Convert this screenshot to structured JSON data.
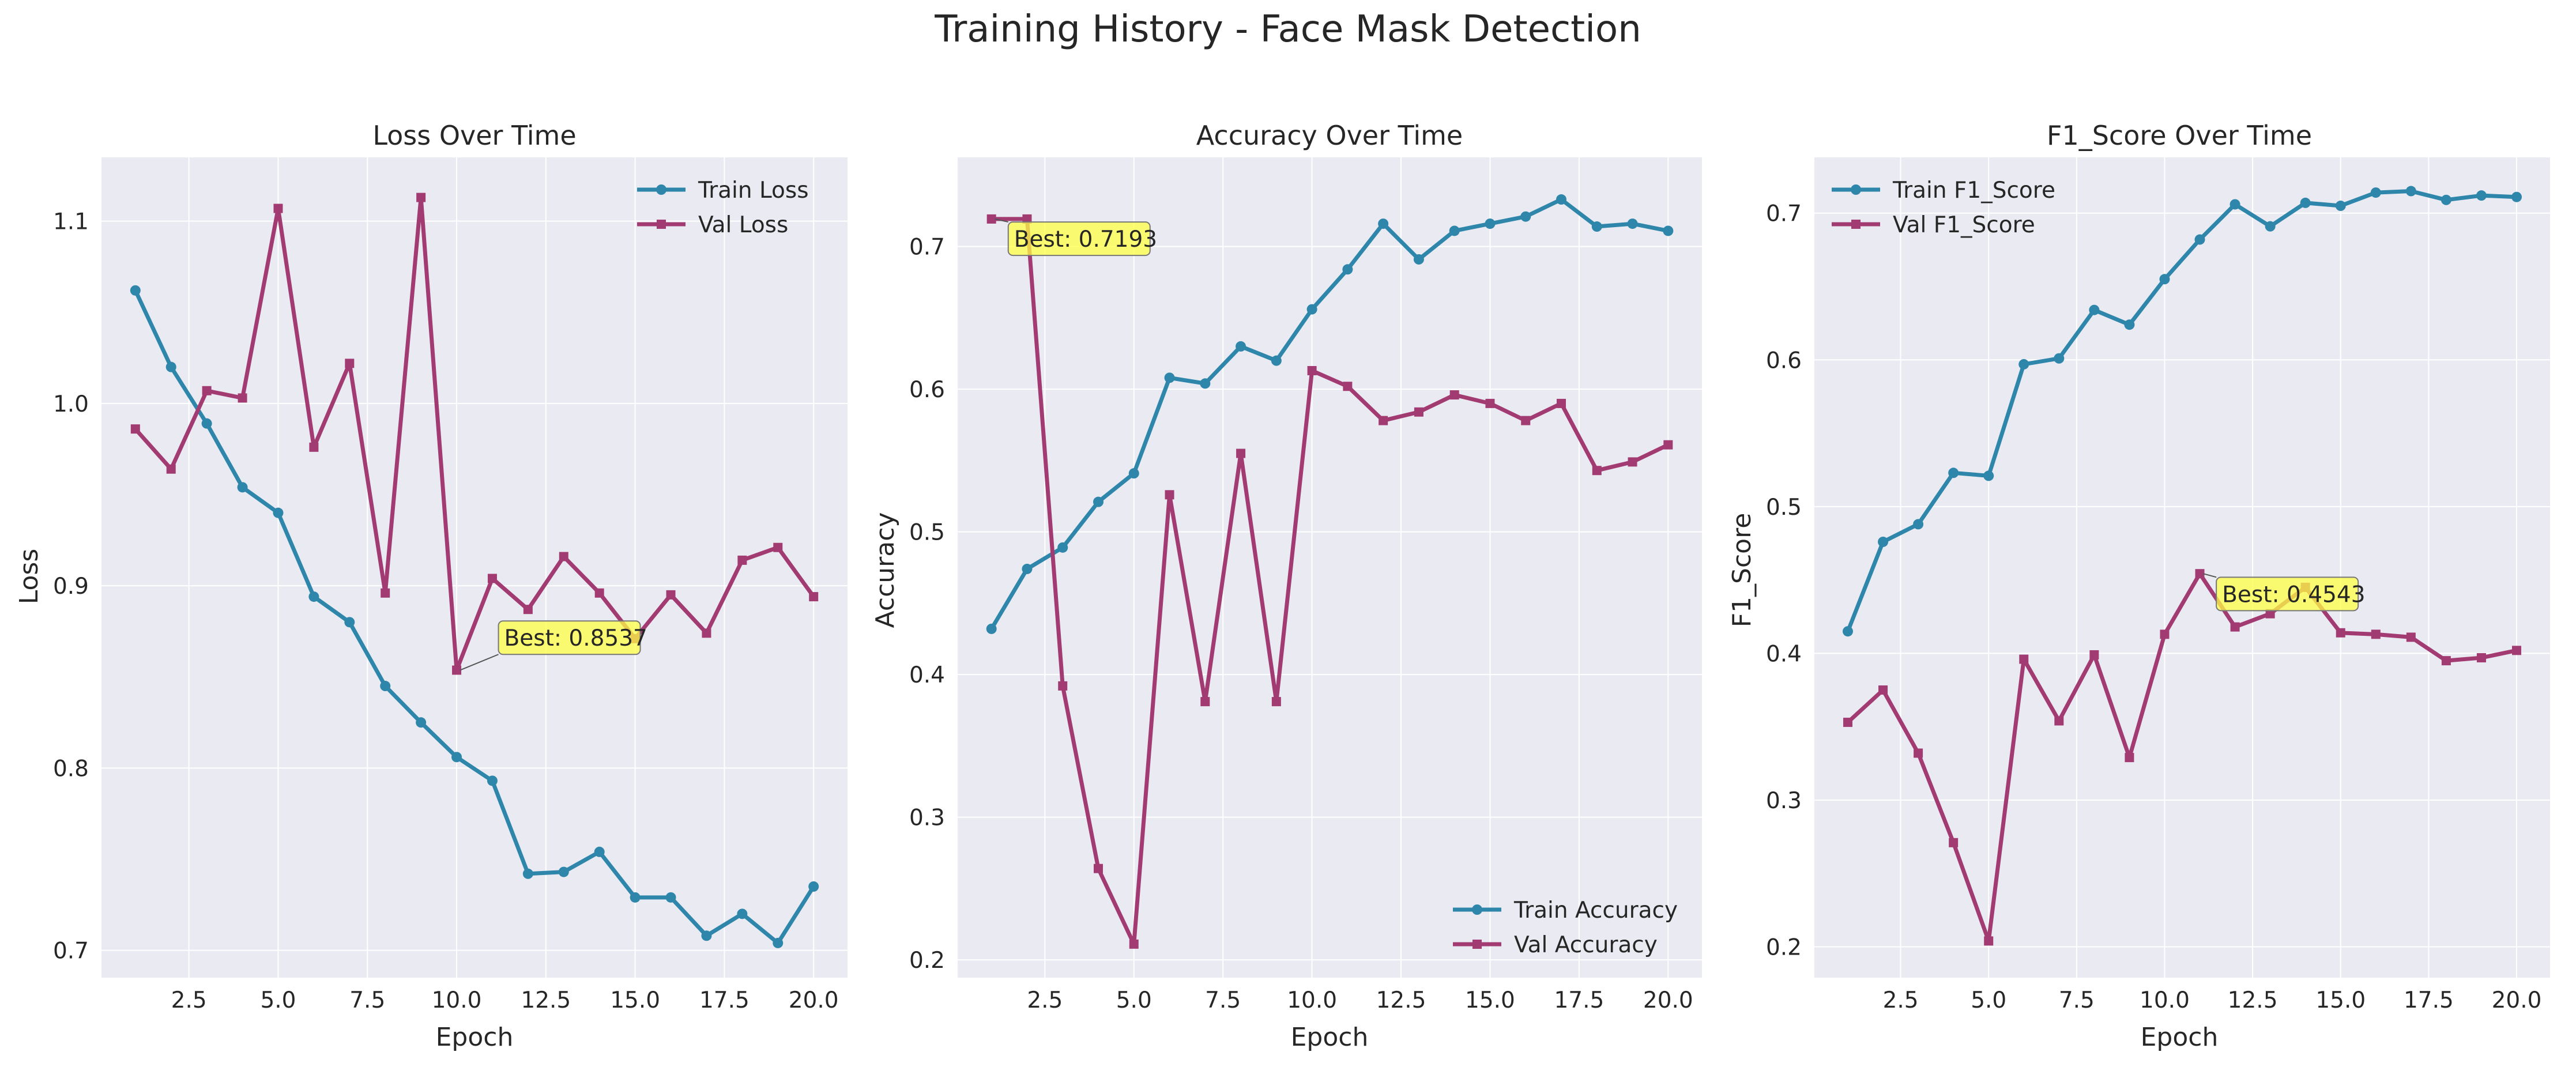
{
  "figure": {
    "title": "Training History - Face Mask Detection"
  },
  "colors": {
    "train": "#2e86ab",
    "val": "#a23b72",
    "panel_bg": "#eaeaf2",
    "grid": "#ffffff",
    "annotation_bg": "#ffff44"
  },
  "chart_data": [
    {
      "type": "line",
      "title": "Loss Over Time",
      "xlabel": "Epoch",
      "ylabel": "Loss",
      "xlim": [
        0.05,
        20.95
      ],
      "ylim": [
        0.685,
        1.135
      ],
      "xticks": [
        2.5,
        5.0,
        7.5,
        10.0,
        12.5,
        15.0,
        17.5,
        20.0
      ],
      "xtick_labels": [
        "2.5",
        "5.0",
        "7.5",
        "10.0",
        "12.5",
        "15.0",
        "17.5",
        "20.0"
      ],
      "yticks": [
        0.7,
        0.8,
        0.9,
        1.0,
        1.1
      ],
      "ytick_labels": [
        "0.7",
        "0.8",
        "0.9",
        "1.0",
        "1.1"
      ],
      "grid": true,
      "legend": "upper right",
      "x": [
        1,
        2,
        3,
        4,
        5,
        6,
        7,
        8,
        9,
        10,
        11,
        12,
        13,
        14,
        15,
        16,
        17,
        18,
        19,
        20
      ],
      "series": [
        {
          "name": "Train Loss",
          "color": "#2e86ab",
          "marker": "circle",
          "values": [
            1.062,
            1.02,
            0.989,
            0.954,
            0.94,
            0.894,
            0.88,
            0.845,
            0.825,
            0.806,
            0.793,
            0.742,
            0.743,
            0.754,
            0.729,
            0.729,
            0.708,
            0.72,
            0.704,
            0.735
          ]
        },
        {
          "name": "Val Loss",
          "color": "#a23b72",
          "marker": "square",
          "values": [
            0.986,
            0.964,
            1.007,
            1.003,
            1.107,
            0.976,
            1.022,
            0.896,
            1.113,
            0.8537,
            0.904,
            0.887,
            0.916,
            0.896,
            0.871,
            0.895,
            0.874,
            0.914,
            0.921,
            0.894
          ]
        }
      ],
      "annotation": {
        "text": "Best: 0.8537",
        "x": 10,
        "y": 0.8537,
        "text_x": 11.3,
        "text_y": 0.8715
      }
    },
    {
      "type": "line",
      "title": "Accuracy Over Time",
      "xlabel": "Epoch",
      "ylabel": "Accuracy",
      "xlim": [
        0.05,
        20.95
      ],
      "ylim": [
        0.1875,
        0.7625
      ],
      "xticks": [
        2.5,
        5.0,
        7.5,
        10.0,
        12.5,
        15.0,
        17.5,
        20.0
      ],
      "xtick_labels": [
        "2.5",
        "5.0",
        "7.5",
        "10.0",
        "12.5",
        "15.0",
        "17.5",
        "20.0"
      ],
      "yticks": [
        0.2,
        0.3,
        0.4,
        0.5,
        0.6,
        0.7
      ],
      "ytick_labels": [
        "0.2",
        "0.3",
        "0.4",
        "0.5",
        "0.6",
        "0.7"
      ],
      "grid": true,
      "legend": "lower right",
      "x": [
        1,
        2,
        3,
        4,
        5,
        6,
        7,
        8,
        9,
        10,
        11,
        12,
        13,
        14,
        15,
        16,
        17,
        18,
        19,
        20
      ],
      "series": [
        {
          "name": "Train Accuracy",
          "color": "#2e86ab",
          "marker": "circle",
          "values": [
            0.432,
            0.474,
            0.489,
            0.521,
            0.541,
            0.608,
            0.604,
            0.63,
            0.62,
            0.656,
            0.684,
            0.716,
            0.691,
            0.711,
            0.716,
            0.721,
            0.733,
            0.714,
            0.716,
            0.711
          ]
        },
        {
          "name": "Val Accuracy",
          "color": "#a23b72",
          "marker": "square",
          "values": [
            0.7193,
            0.7193,
            0.392,
            0.264,
            0.211,
            0.526,
            0.381,
            0.555,
            0.381,
            0.613,
            0.602,
            0.578,
            0.584,
            0.596,
            0.59,
            0.578,
            0.59,
            0.543,
            0.549,
            0.561
          ]
        }
      ],
      "annotation": {
        "text": "Best: 0.7193",
        "x": 1,
        "y": 0.7193,
        "text_x": 1.6,
        "text_y": 0.7055
      }
    },
    {
      "type": "line",
      "title": "F1_Score Over Time",
      "xlabel": "Epoch",
      "ylabel": "F1_Score",
      "xlim": [
        0.05,
        20.95
      ],
      "ylim": [
        0.179,
        0.738
      ],
      "xticks": [
        2.5,
        5.0,
        7.5,
        10.0,
        12.5,
        15.0,
        17.5,
        20.0
      ],
      "xtick_labels": [
        "2.5",
        "5.0",
        "7.5",
        "10.0",
        "12.5",
        "15.0",
        "17.5",
        "20.0"
      ],
      "yticks": [
        0.2,
        0.3,
        0.4,
        0.5,
        0.6,
        0.7
      ],
      "ytick_labels": [
        "0.2",
        "0.3",
        "0.4",
        "0.5",
        "0.6",
        "0.7"
      ],
      "grid": true,
      "legend": "upper left",
      "x": [
        1,
        2,
        3,
        4,
        5,
        6,
        7,
        8,
        9,
        10,
        11,
        12,
        13,
        14,
        15,
        16,
        17,
        18,
        19,
        20
      ],
      "series": [
        {
          "name": "Train F1_Score",
          "color": "#2e86ab",
          "marker": "circle",
          "values": [
            0.415,
            0.476,
            0.488,
            0.523,
            0.521,
            0.597,
            0.601,
            0.634,
            0.624,
            0.655,
            0.682,
            0.706,
            0.691,
            0.707,
            0.705,
            0.714,
            0.715,
            0.709,
            0.712,
            0.711
          ]
        },
        {
          "name": "Val F1_Score",
          "color": "#a23b72",
          "marker": "square",
          "values": [
            0.353,
            0.375,
            0.332,
            0.271,
            0.204,
            0.396,
            0.354,
            0.399,
            0.329,
            0.413,
            0.4543,
            0.418,
            0.427,
            0.445,
            0.414,
            0.413,
            0.411,
            0.395,
            0.397,
            0.402
          ]
        }
      ],
      "annotation": {
        "text": "Best: 0.4543",
        "x": 11,
        "y": 0.4543,
        "text_x": 11.6,
        "text_y": 0.4405
      }
    }
  ]
}
